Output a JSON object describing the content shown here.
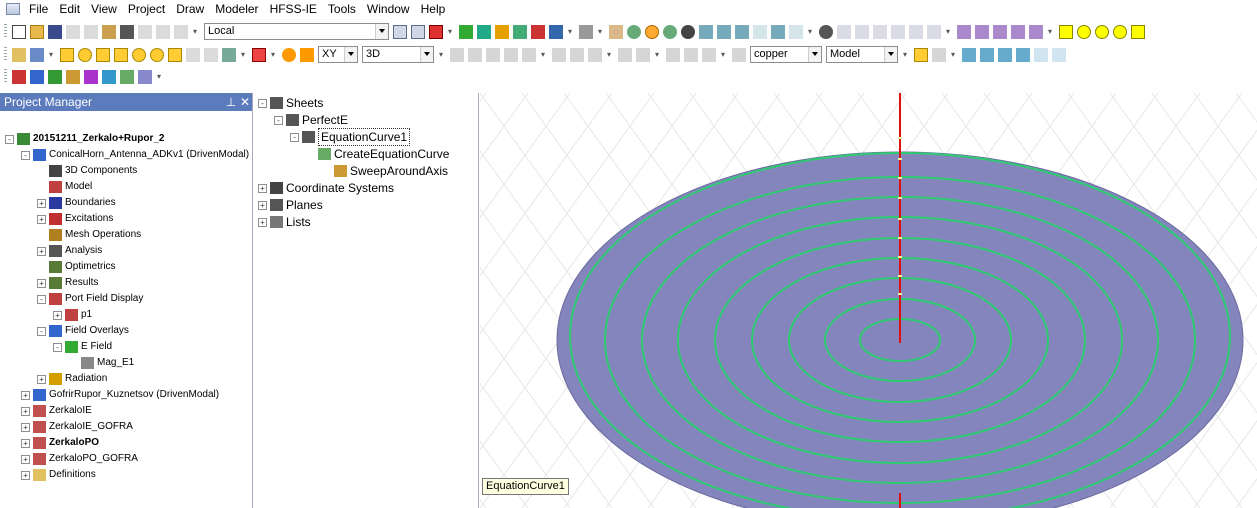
{
  "menu": {
    "items": [
      "File",
      "Edit",
      "View",
      "Project",
      "Draw",
      "Modeler",
      "HFSS-IE",
      "Tools",
      "Window",
      "Help"
    ]
  },
  "toolbar": {
    "coord_system_value": "Local",
    "plane_value": "XY",
    "mode_value": "3D",
    "material_value": "copper",
    "model_value": "Model"
  },
  "project_manager": {
    "title": "Project Manager",
    "pin_icon": "pin-icon",
    "close_icon": "close-icon",
    "items": [
      {
        "label": "20151211_Zerkalo+Rupor_2",
        "toggle": "-",
        "bold": true
      },
      {
        "label": "ConicalHorn_Antenna_ADKv1 (DrivenModal)",
        "toggle": "-"
      },
      {
        "label": "3D Components",
        "toggle": ""
      },
      {
        "label": "Model",
        "toggle": ""
      },
      {
        "label": "Boundaries",
        "toggle": "+"
      },
      {
        "label": "Excitations",
        "toggle": "+"
      },
      {
        "label": "Mesh Operations",
        "toggle": ""
      },
      {
        "label": "Analysis",
        "toggle": "+"
      },
      {
        "label": "Optimetrics",
        "toggle": ""
      },
      {
        "label": "Results",
        "toggle": "+"
      },
      {
        "label": "Port Field Display",
        "toggle": "-"
      },
      {
        "label": "p1",
        "toggle": "+"
      },
      {
        "label": "Field Overlays",
        "toggle": "-"
      },
      {
        "label": "E Field",
        "toggle": "-"
      },
      {
        "label": "Mag_E1",
        "toggle": ""
      },
      {
        "label": "Radiation",
        "toggle": "+"
      },
      {
        "label": "GofrirRupor_Kuznetsov (DrivenModal)",
        "toggle": "+"
      },
      {
        "label": "ZerkaloIE",
        "toggle": "+"
      },
      {
        "label": "ZerkaloIE_GOFRA",
        "toggle": "+"
      },
      {
        "label": "ZerkaloPO",
        "toggle": "+",
        "bold": true
      },
      {
        "label": "ZerkaloPO_GOFRA",
        "toggle": "+"
      },
      {
        "label": "Definitions",
        "toggle": "+"
      }
    ]
  },
  "history_tree": {
    "items": [
      {
        "label": "Sheets",
        "toggle": "-"
      },
      {
        "label": "PerfectE",
        "toggle": "-"
      },
      {
        "label": "EquationCurve1",
        "toggle": "-"
      },
      {
        "label": "CreateEquationCurve",
        "toggle": ""
      },
      {
        "label": "SweepAroundAxis",
        "toggle": ""
      },
      {
        "label": "Coordinate Systems",
        "toggle": "+"
      },
      {
        "label": "Planes",
        "toggle": "+"
      },
      {
        "label": "Lists",
        "toggle": "+"
      }
    ]
  },
  "viewport": {
    "tooltip": "EquationCurve1",
    "surface_color": "#8585bd",
    "curve_color": "#2ecc71",
    "axis_color": "#e01010"
  },
  "colors": {
    "pm_header": "#5b7bbd"
  }
}
